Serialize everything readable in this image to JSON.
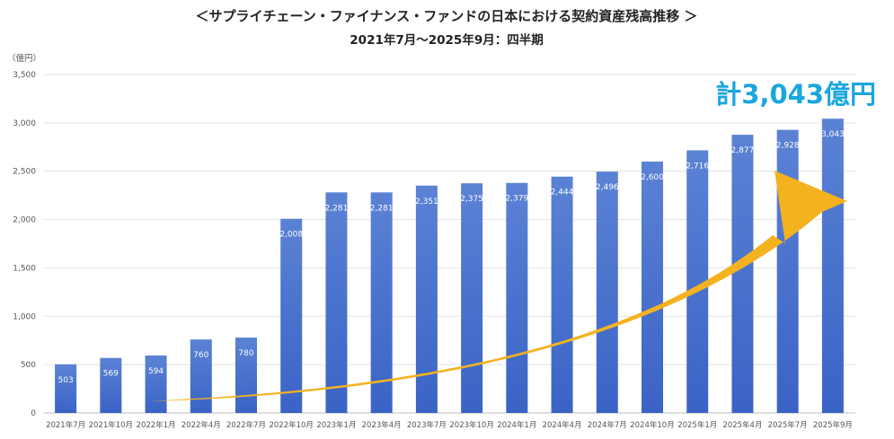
{
  "chart_data": {
    "type": "bar",
    "title": "＜サプライチェーン・ファイナンス・ファンドの日本における契約資産残高推移 ＞",
    "subtitle": "2021年7月～2025年9月：四半期",
    "unit_label": "（億円）",
    "categories": [
      "2021年7月",
      "2021年10月",
      "2022年1月",
      "2022年4月",
      "2022年7月",
      "2022年10月",
      "2023年1月",
      "2023年4月",
      "2023年7月",
      "2023年10月",
      "2024年1月",
      "2024年4月",
      "2024年7月",
      "2024年10月",
      "2025年1月",
      "2025年4月",
      "2025年7月",
      "2025年9月"
    ],
    "values": [
      503,
      569,
      594,
      760,
      780,
      2008,
      2281,
      2281,
      2351,
      2375,
      2379,
      2444,
      2496,
      2600,
      2716,
      2877,
      2928,
      3043
    ],
    "value_labels": [
      "503",
      "569",
      "594",
      "760",
      "780",
      "2,008",
      "2,281",
      "2,281",
      "2,351",
      "2,375",
      "2,379",
      "2,444",
      "2,496",
      "2,600",
      "2,716",
      "2,877",
      "2,928",
      "3,043"
    ],
    "ylim": [
      0,
      3500
    ],
    "yticks": [
      0,
      500,
      1000,
      1500,
      2000,
      2500,
      3000,
      3500
    ],
    "ytick_labels": [
      "0",
      "500",
      "1,000",
      "1,500",
      "2,000",
      "2,500",
      "3,000",
      "3,500"
    ],
    "grid": true,
    "callout": "計3,043億円",
    "colors": {
      "bar_top": "#5b82d4",
      "bar_bottom": "#3a63c6",
      "arrow": "#f4b21f",
      "callout": "#1aa6de",
      "grid": "#e3e3e3"
    }
  }
}
